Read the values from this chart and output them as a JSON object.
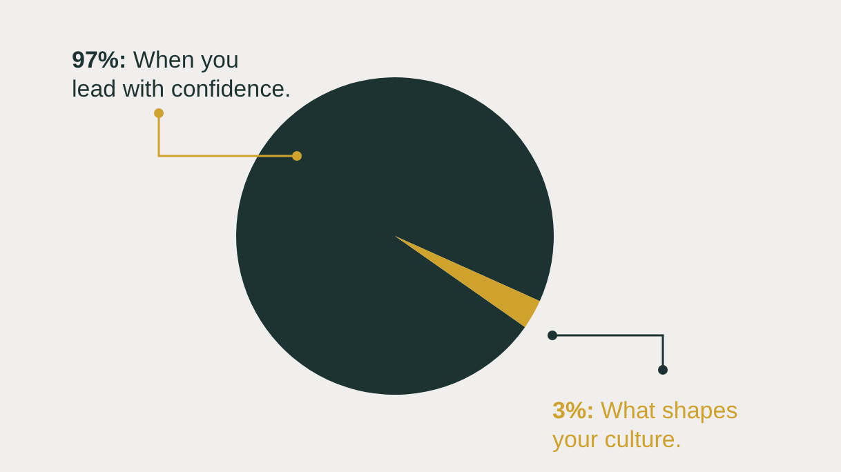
{
  "chart_data": {
    "type": "pie",
    "categories": [
      "When you lead with confidence.",
      "What shapes your culture."
    ],
    "values": [
      97,
      3
    ],
    "colors": [
      "#1c3331",
      "#cfa22e"
    ],
    "value_labels": [
      "97%:",
      "3%:"
    ],
    "legend": false
  }
}
